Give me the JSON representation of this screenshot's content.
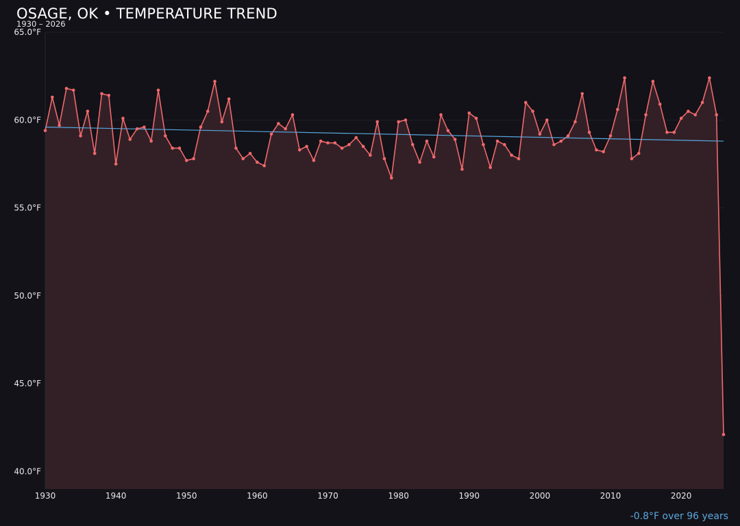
{
  "header": {
    "title": "OSAGE, OK • TEMPERATURE TREND",
    "subtitle": "1930 – 2026"
  },
  "footer": {
    "trend_note": "-0.8°F over 96 years"
  },
  "colors": {
    "background": "#131218",
    "series_line": "#f0696c",
    "area_fill": "#332027",
    "trend_line": "#5aa8df",
    "grid": "#221f27",
    "text": "#e8e8ec"
  },
  "chart_data": {
    "type": "line",
    "title": "OSAGE, OK • TEMPERATURE TREND",
    "subtitle": "1930 – 2026",
    "xlabel": "",
    "ylabel": "",
    "xlim": [
      1930,
      2026
    ],
    "ylim": [
      39.0,
      65.0
    ],
    "grid": true,
    "legend": "none",
    "x_ticks": [
      1930,
      1940,
      1950,
      1960,
      1970,
      1980,
      1990,
      2000,
      2010,
      2020
    ],
    "x_tick_labels": [
      "1930",
      "1940",
      "1950",
      "1960",
      "1970",
      "1980",
      "1990",
      "2000",
      "2010",
      "2020"
    ],
    "y_ticks": [
      40,
      45,
      50,
      55,
      60,
      65
    ],
    "y_tick_labels": [
      "40.0°F",
      "45.0°F",
      "50.0°F",
      "55.0°F",
      "60.0°F",
      "65.0°F"
    ],
    "series": [
      {
        "x": [
          1930,
          1931,
          1932,
          1933,
          1934,
          1935,
          1936,
          1937,
          1938,
          1939,
          1940,
          1941,
          1942,
          1943,
          1944,
          1945,
          1946,
          1947,
          1948,
          1949,
          1950,
          1951,
          1952,
          1953,
          1954,
          1955,
          1956,
          1957,
          1958,
          1959,
          1960,
          1961,
          1962,
          1963,
          1964,
          1965,
          1966,
          1967,
          1968,
          1969,
          1970,
          1971,
          1972,
          1973,
          1974,
          1975,
          1976,
          1977,
          1978,
          1979,
          1980,
          1981,
          1982,
          1983,
          1984,
          1985,
          1986,
          1987,
          1988,
          1989,
          1990,
          1991,
          1992,
          1993,
          1994,
          1995,
          1996,
          1997,
          1998,
          1999,
          2000,
          2001,
          2002,
          2003,
          2004,
          2005,
          2006,
          2007,
          2008,
          2009,
          2010,
          2011,
          2012,
          2013,
          2014,
          2015,
          2016,
          2017,
          2018,
          2019,
          2020,
          2021,
          2022,
          2023,
          2024,
          2025,
          2026
        ],
        "y": [
          59.4,
          61.3,
          59.7,
          61.8,
          61.7,
          59.1,
          60.5,
          58.1,
          61.5,
          61.4,
          57.5,
          60.1,
          58.9,
          59.5,
          59.6,
          58.8,
          61.7,
          59.1,
          58.4,
          58.4,
          57.7,
          57.8,
          59.6,
          60.5,
          62.2,
          59.9,
          61.2,
          58.4,
          57.8,
          58.1,
          57.6,
          57.4,
          59.2,
          59.8,
          59.5,
          60.3,
          58.3,
          58.5,
          57.7,
          58.8,
          58.7,
          58.7,
          58.4,
          58.6,
          59.0,
          58.5,
          58.0,
          59.9,
          57.8,
          56.7,
          59.9,
          60.0,
          58.6,
          57.6,
          58.8,
          57.9,
          60.3,
          59.4,
          58.9,
          57.2,
          60.4,
          60.1,
          58.6,
          57.3,
          58.8,
          58.6,
          58.0,
          57.8,
          61.0,
          60.5,
          59.2,
          60.0,
          58.6,
          58.8,
          59.1,
          59.9,
          61.5,
          59.3,
          58.3,
          58.2,
          59.1,
          60.6,
          62.4,
          57.8,
          58.1,
          60.3,
          62.2,
          60.9,
          59.3,
          59.3,
          60.1,
          60.5,
          60.3,
          61.0,
          62.4,
          60.3,
          42.1
        ]
      }
    ],
    "trend": {
      "start": [
        1930,
        59.6
      ],
      "end": [
        2026,
        58.8
      ]
    }
  }
}
